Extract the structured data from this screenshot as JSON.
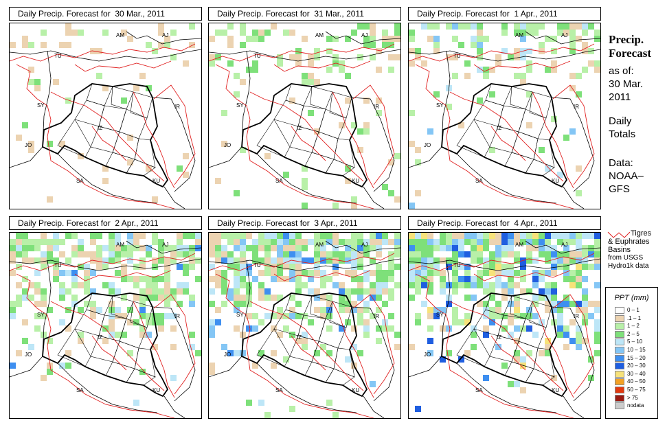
{
  "panels": [
    {
      "title": "Daily Precip. Forecast for  30 Mar., 2011"
    },
    {
      "title": "Daily Precip. Forecast for  31 Mar., 2011"
    },
    {
      "title": "Daily Precip. Forecast for  1 Apr., 2011"
    },
    {
      "title": "Daily Precip. Forecast for  2 Apr., 2011"
    },
    {
      "title": "Daily Precip. Forecast for  3 Apr., 2011"
    },
    {
      "title": "Daily Precip. Forecast for  4 Apr., 2011"
    }
  ],
  "country_labels": [
    "AM",
    "AJ",
    "TU",
    "SY",
    "IR",
    "JO",
    "SA",
    "KU",
    "IZ"
  ],
  "sidebar": {
    "heading_1": "Precip.",
    "heading_2": "Forecast",
    "asof_1": "as of:",
    "asof_2": "30 Mar.",
    "asof_3": "2011",
    "daily_1": "Daily",
    "daily_2": "Totals",
    "data_1": "Data:",
    "data_2": "NOAA–",
    "data_3": "GFS"
  },
  "basin_legend": {
    "line1": "Tigres",
    "line2": "& Euphrates",
    "line3": "Basins",
    "line4": "from USGS",
    "line5": "Hydro1k data",
    "line_color": "#e02020"
  },
  "legend": {
    "title": "PPT (mm)",
    "classes": [
      {
        "label": "0 – 1",
        "color": "#ffffff"
      },
      {
        "label": ".1 – 1",
        "color": "#ecd3b1"
      },
      {
        "label": "1 – 2",
        "color": "#b8f0a8"
      },
      {
        "label": "2 – 5",
        "color": "#7ee07a"
      },
      {
        "label": "5 – 10",
        "color": "#bde6f7"
      },
      {
        "label": "10 – 15",
        "color": "#84c6f5"
      },
      {
        "label": "15 – 20",
        "color": "#3e8ff0"
      },
      {
        "label": "20 – 30",
        "color": "#1f5ee0"
      },
      {
        "label": "30 – 40",
        "color": "#f7e27a"
      },
      {
        "label": "40 – 50",
        "color": "#f4a224"
      },
      {
        "label": "50 – 75",
        "color": "#e23a10"
      },
      {
        "label": "> 75",
        "color": "#9b1a12"
      },
      {
        "label": "nodata",
        "color": "#cccccc"
      }
    ]
  }
}
